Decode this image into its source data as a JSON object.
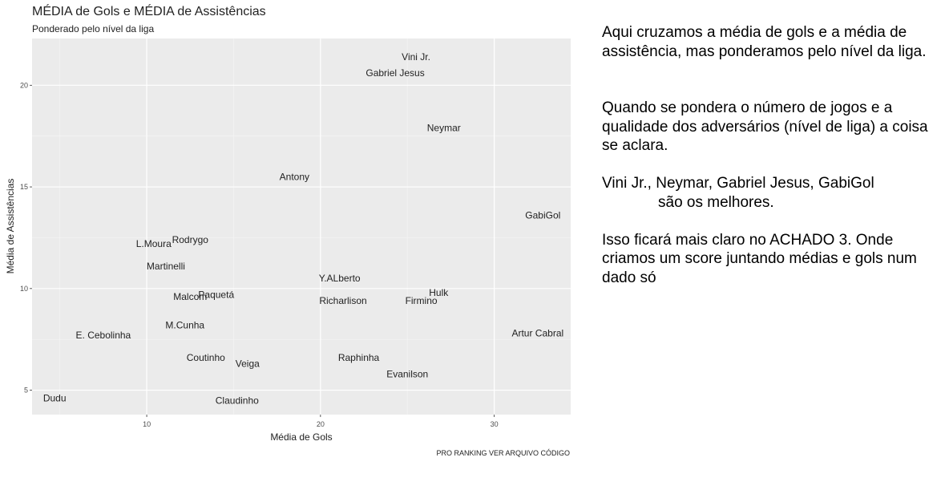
{
  "chart_data": {
    "type": "scatter",
    "title": "MÉDIA de Gols e MÉDIA de Assistências",
    "subtitle": "Ponderado pelo nível da liga",
    "xlabel": "Média de Gols",
    "ylabel": "Média de Assistências",
    "caption": "PRO RANKING VER ARQUIVO CÓDIGO",
    "xlim": [
      3.4,
      34.4
    ],
    "ylim": [
      3.8,
      22.3
    ],
    "xticks": [
      10,
      20,
      30
    ],
    "yticks": [
      5,
      10,
      15,
      20
    ],
    "grid": true,
    "points": [
      {
        "label": "Vini Jr.",
        "x": 25.5,
        "y": 21.4
      },
      {
        "label": "Gabriel Jesus",
        "x": 24.3,
        "y": 20.6
      },
      {
        "label": "Neymar",
        "x": 27.1,
        "y": 17.9
      },
      {
        "label": "Antony",
        "x": 18.5,
        "y": 15.5
      },
      {
        "label": "GabiGol",
        "x": 32.8,
        "y": 13.6
      },
      {
        "label": "L.Moura",
        "x": 10.4,
        "y": 12.2
      },
      {
        "label": "Rodrygo",
        "x": 12.5,
        "y": 12.4
      },
      {
        "label": "Martinelli",
        "x": 11.1,
        "y": 11.1
      },
      {
        "label": "Y.ALberto",
        "x": 21.1,
        "y": 10.5
      },
      {
        "label": "Hulk",
        "x": 26.8,
        "y": 9.8
      },
      {
        "label": "Paquetá",
        "x": 14.0,
        "y": 9.7
      },
      {
        "label": "Malcom",
        "x": 12.5,
        "y": 9.6
      },
      {
        "label": "Richarlison",
        "x": 21.3,
        "y": 9.4
      },
      {
        "label": "Firmino",
        "x": 25.8,
        "y": 9.4
      },
      {
        "label": "M.Cunha",
        "x": 12.2,
        "y": 8.2
      },
      {
        "label": "Artur Cabral",
        "x": 32.5,
        "y": 7.8
      },
      {
        "label": "E. Cebolinha",
        "x": 7.5,
        "y": 7.7
      },
      {
        "label": "Coutinho",
        "x": 13.4,
        "y": 6.6
      },
      {
        "label": "Raphinha",
        "x": 22.2,
        "y": 6.6
      },
      {
        "label": "Veiga",
        "x": 15.8,
        "y": 6.3
      },
      {
        "label": "Evanilson",
        "x": 25.0,
        "y": 5.8
      },
      {
        "label": "Dudu",
        "x": 4.7,
        "y": 4.6
      },
      {
        "label": "Claudinho",
        "x": 15.2,
        "y": 4.5
      }
    ]
  },
  "side_text": {
    "paragraph1": "Aqui cruzamos a média de gols e a média de assistência, mas ponderamos pelo nível da liga.",
    "paragraph2": "Quando se pondera o número de jogos e a qualidade dos adversários (nível de liga) a coisa se aclara.",
    "paragraph3_line1": "Vini Jr., Neymar, Gabriel Jesus, GabiGol",
    "paragraph3_line2": "são os melhores.",
    "paragraph4": "Isso ficará mais claro no ACHADO 3. Onde criamos um score juntando médias e gols num dado só"
  }
}
